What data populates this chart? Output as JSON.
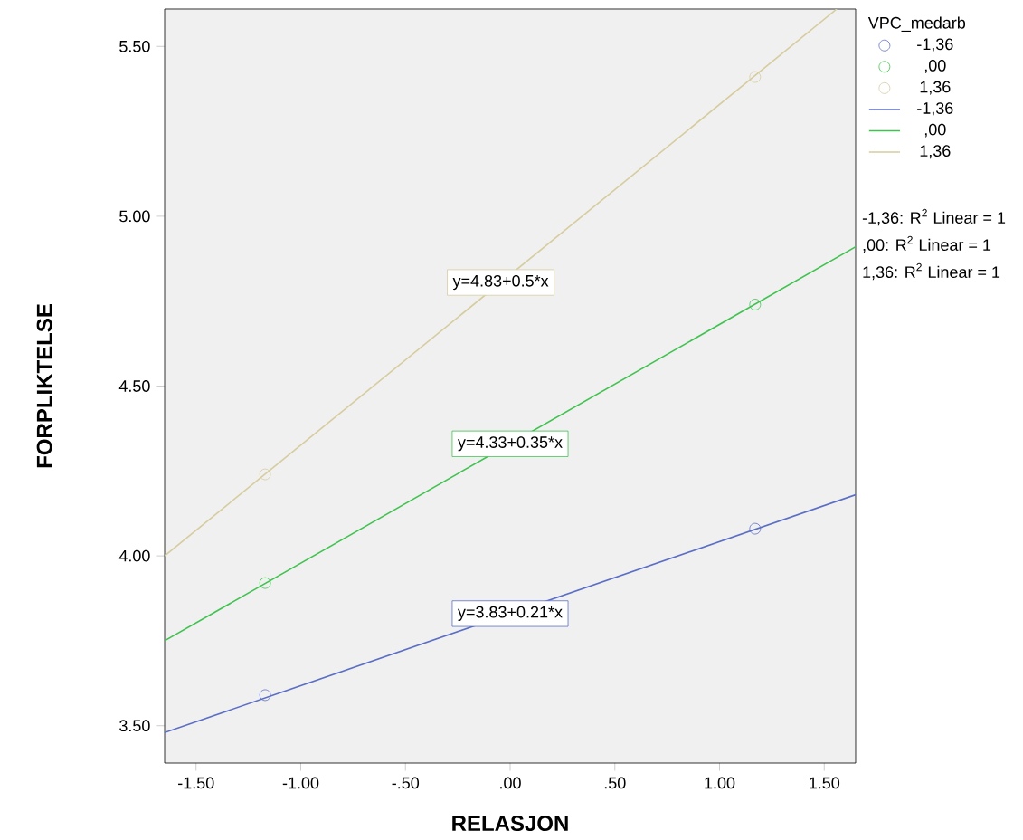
{
  "chart_data": {
    "type": "scatter",
    "xlabel": "RELASJON",
    "ylabel": "FORPLIKTELSE",
    "legend_title": "VPC_medarb",
    "legend": "top right",
    "marker": "circle",
    "xlim": [
      -1.65,
      1.65
    ],
    "ylim": [
      3.39,
      5.61
    ],
    "xticks": [
      {
        "value": -1.5,
        "label": "-1.50"
      },
      {
        "value": -1,
        "label": "-1.00"
      },
      {
        "value": -0.5,
        "label": "-.50"
      },
      {
        "value": 0,
        "label": ".00"
      },
      {
        "value": 0.5,
        "label": ".50"
      },
      {
        "value": 1,
        "label": "1.00"
      },
      {
        "value": 1.5,
        "label": "1.50"
      }
    ],
    "yticks": [
      {
        "value": 3.5,
        "label": "3.50"
      },
      {
        "value": 4,
        "label": "4.00"
      },
      {
        "value": 4.5,
        "label": "4.50"
      },
      {
        "value": 5,
        "label": "5.00"
      },
      {
        "value": 5.5,
        "label": "5.50"
      }
    ],
    "x": [
      -1.17,
      1.17
    ],
    "series": [
      {
        "name": "-1,36",
        "color": "#5b6ec6",
        "values": [
          3.59,
          4.08
        ]
      },
      {
        "name": ",00",
        "color": "#3fc24f",
        "values": [
          3.92,
          4.74
        ]
      },
      {
        "name": "1,36",
        "color": "#d6cc9f",
        "values": [
          4.24,
          5.41
        ]
      },
      {
        "name": "-1,36",
        "type": "line",
        "marker": "none",
        "color": "#5b6ec6",
        "x": [
          -1.65,
          1.65
        ],
        "values": [
          3.48,
          4.18
        ]
      },
      {
        "name": ",00",
        "type": "line",
        "marker": "none",
        "color": "#3fc24f",
        "x": [
          -1.65,
          1.65
        ],
        "values": [
          3.75,
          4.91
        ]
      },
      {
        "name": "1,36",
        "type": "line",
        "marker": "none",
        "color": "#d6cc9f",
        "x": [
          -1.65,
          1.56
        ],
        "values": [
          4.0,
          5.61
        ]
      }
    ],
    "annotations": [
      "y=3.83+0.21*x",
      "y=4.33+0.35*x",
      "y=4.83+0.5*x",
      "-1,36: R$^{2}$ Linear = 1",
      ",00: R$^{2}$ Linear = 1",
      "1,36: R$^{2}$ Linear = 1"
    ]
  }
}
